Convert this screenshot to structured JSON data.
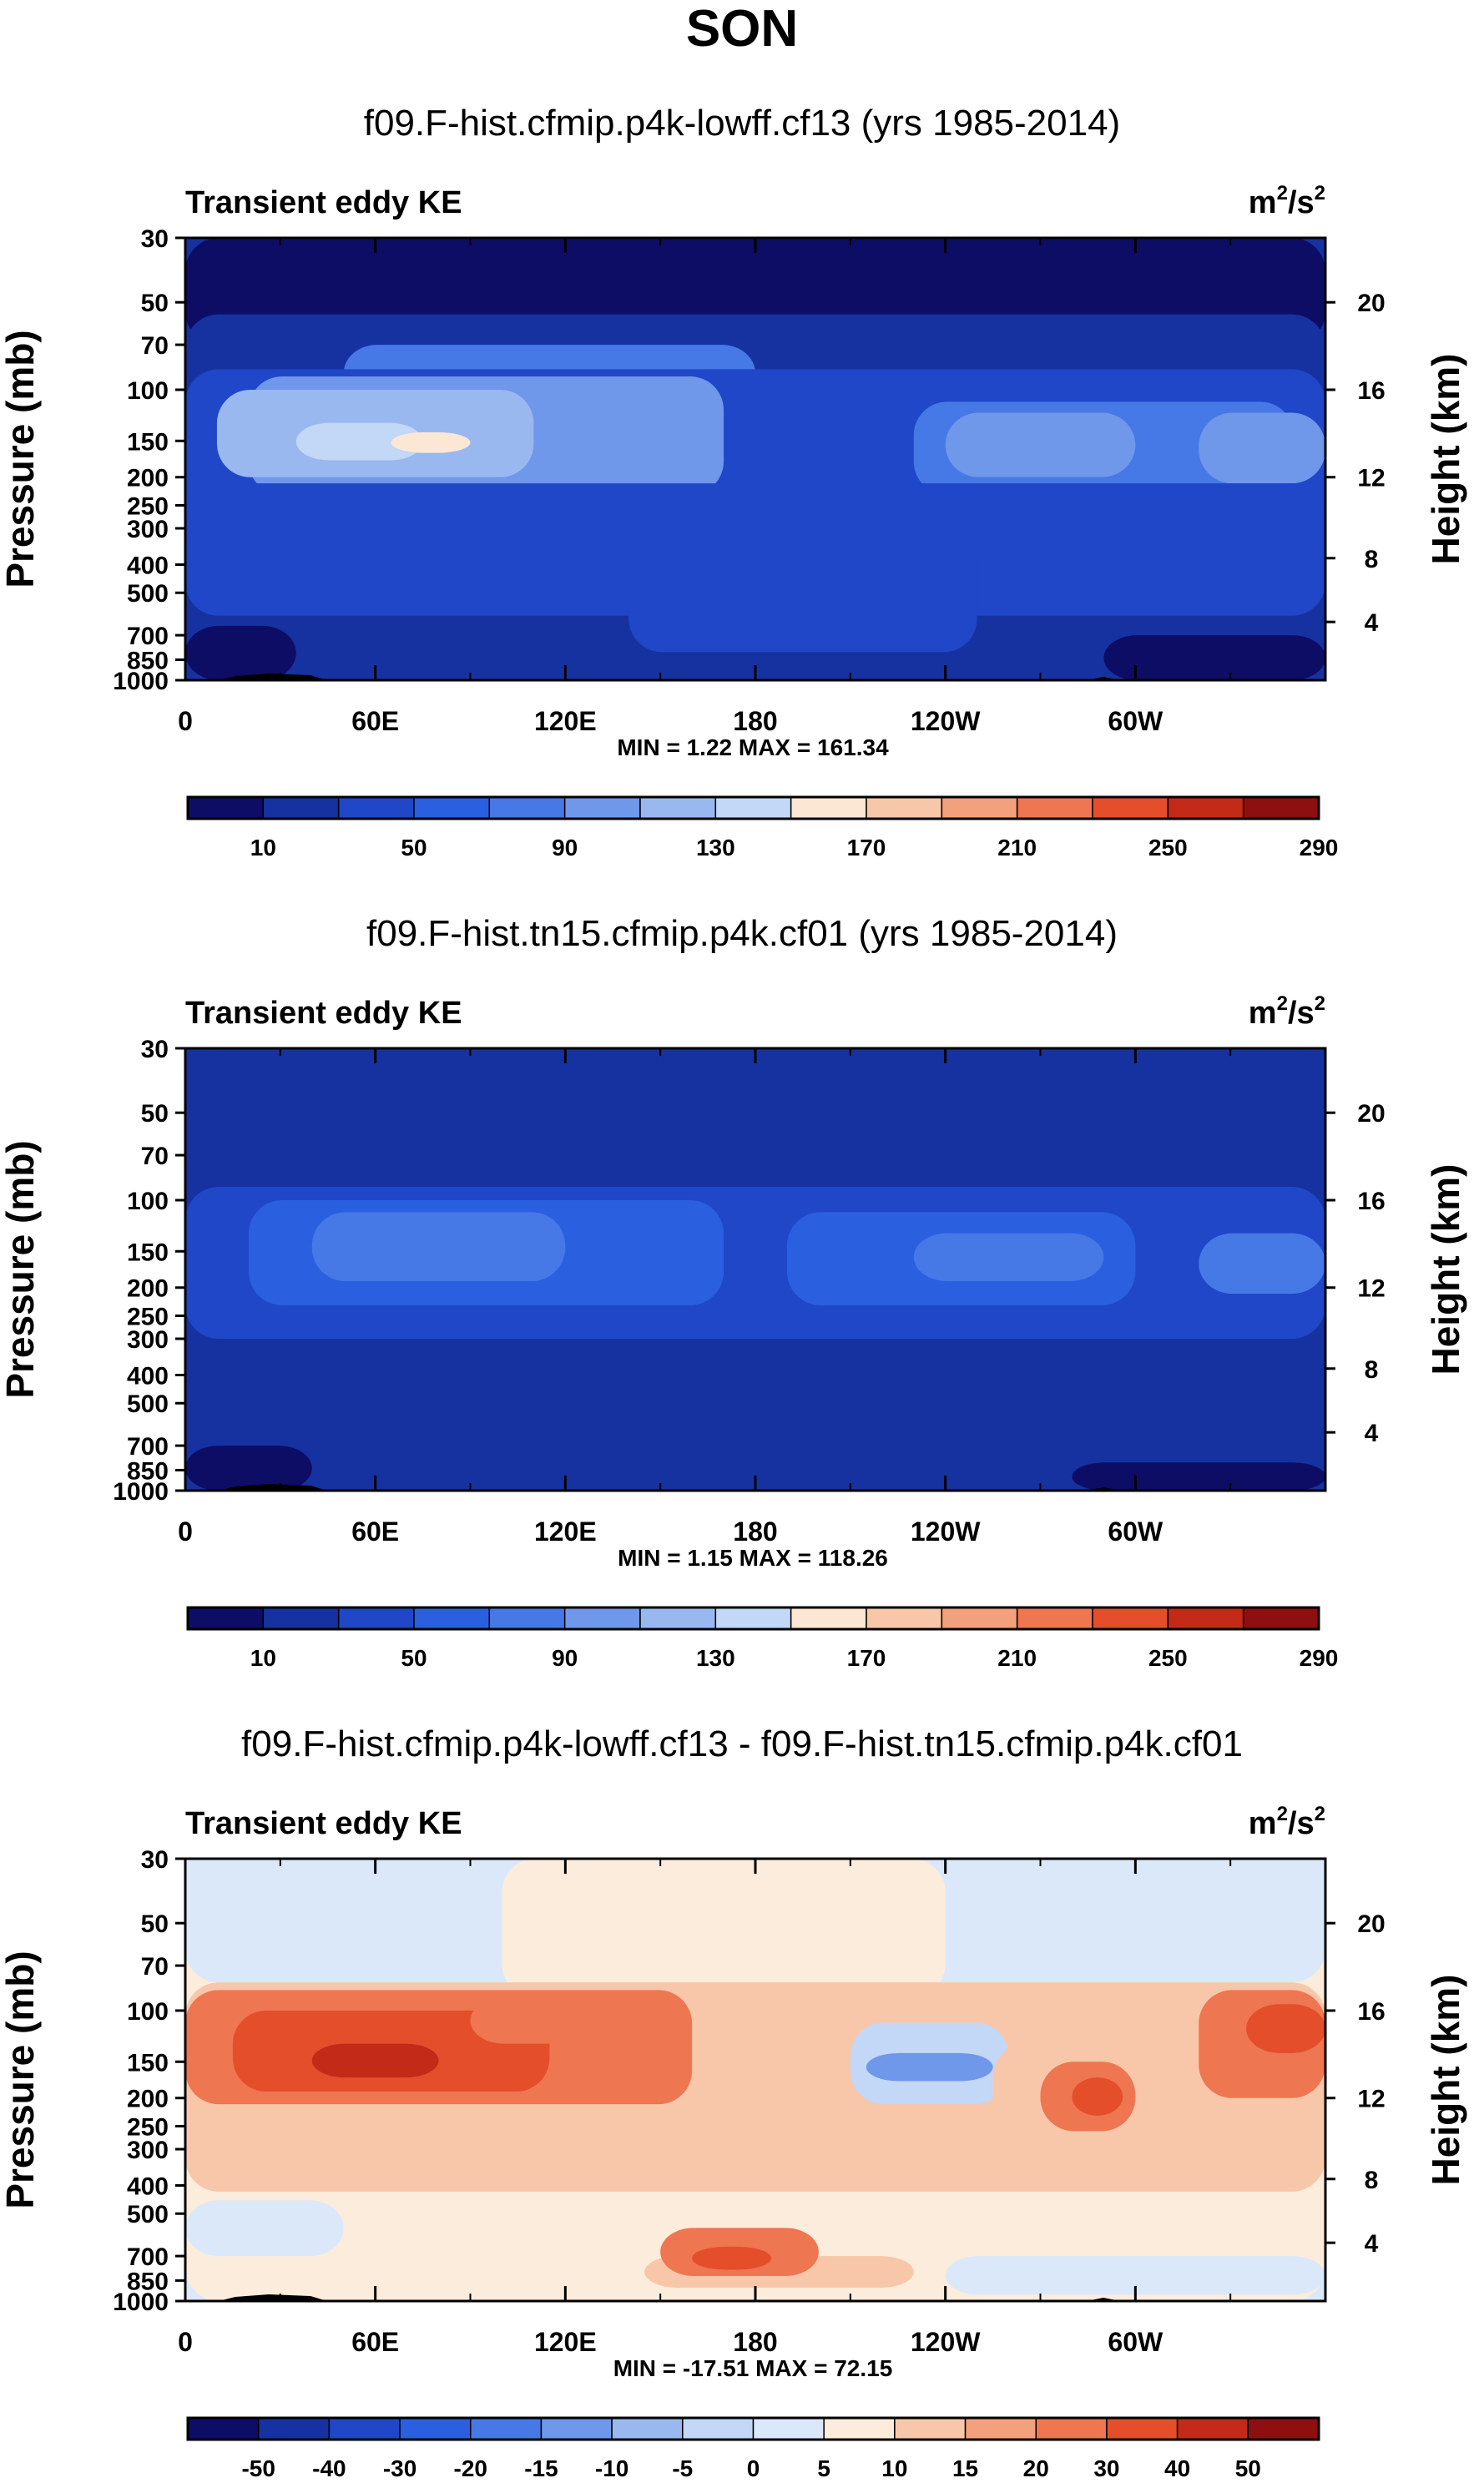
{
  "figure": {
    "season_title": "SON",
    "colors": {
      "abs_scale": [
        "#0d0d66",
        "#1632a0",
        "#1f47c8",
        "#2a5fe0",
        "#4678e6",
        "#6f97ea",
        "#99b8f0",
        "#c3d7f6",
        "#fbe7d4",
        "#f8c7aa",
        "#f3a07c",
        "#ee7650",
        "#e44e2b",
        "#c42a18",
        "#8d0f0f"
      ],
      "diff_scale": [
        "#0d0d66",
        "#1632a0",
        "#1f47c8",
        "#2a5fe0",
        "#4678e6",
        "#6f97ea",
        "#99b8f0",
        "#c3d7f6",
        "#dbe8fa",
        "#fcecdc",
        "#f8c7aa",
        "#f3a07c",
        "#ee7650",
        "#e44e2b",
        "#c42a18",
        "#8d0f0f"
      ]
    }
  },
  "chart_data": [
    {
      "type": "heatmap",
      "title": "f09.F-hist.cfmip.p4k-lowff.cf13 (yrs 1985-2014)",
      "field_label": "Transient eddy KE",
      "units_base": "m",
      "units_exp": "2",
      "units_sep": "/s",
      "units_exp2": "2",
      "ylabel": "Pressure (mb)",
      "y2label": "Height (km)",
      "x_ticks": [
        "0",
        "60E",
        "120E",
        "180",
        "120W",
        "60W"
      ],
      "y_ticks": [
        "30",
        "50",
        "70",
        "100",
        "150",
        "200",
        "250",
        "300",
        "400",
        "500",
        "700",
        "850",
        "1000"
      ],
      "y2_ticks": [
        "20",
        "16",
        "12",
        "8",
        "4"
      ],
      "stats": "MIN =   1.22  MAX = 161.34",
      "min": 1.22,
      "max": 161.34,
      "colorbar_labels": [
        "10",
        "50",
        "90",
        "130",
        "170",
        "210",
        "250",
        "290"
      ]
    },
    {
      "type": "heatmap",
      "title": "f09.F-hist.tn15.cfmip.p4k.cf01 (yrs 1985-2014)",
      "field_label": "Transient eddy KE",
      "units_base": "m",
      "units_exp": "2",
      "units_sep": "/s",
      "units_exp2": "2",
      "ylabel": "Pressure (mb)",
      "y2label": "Height (km)",
      "x_ticks": [
        "0",
        "60E",
        "120E",
        "180",
        "120W",
        "60W"
      ],
      "y_ticks": [
        "30",
        "50",
        "70",
        "100",
        "150",
        "200",
        "250",
        "300",
        "400",
        "500",
        "700",
        "850",
        "1000"
      ],
      "y2_ticks": [
        "20",
        "16",
        "12",
        "8",
        "4"
      ],
      "stats": "MIN =   1.15  MAX = 118.26",
      "min": 1.15,
      "max": 118.26,
      "colorbar_labels": [
        "10",
        "50",
        "90",
        "130",
        "170",
        "210",
        "250",
        "290"
      ]
    },
    {
      "type": "heatmap",
      "title": "f09.F-hist.cfmip.p4k-lowff.cf13 - f09.F-hist.tn15.cfmip.p4k.cf01",
      "field_label": "Transient eddy KE",
      "units_base": "m",
      "units_exp": "2",
      "units_sep": "/s",
      "units_exp2": "2",
      "ylabel": "Pressure (mb)",
      "y2label": "Height (km)",
      "x_ticks": [
        "0",
        "60E",
        "120E",
        "180",
        "120W",
        "60W"
      ],
      "y_ticks": [
        "30",
        "50",
        "70",
        "100",
        "150",
        "200",
        "250",
        "300",
        "400",
        "500",
        "700",
        "850",
        "1000"
      ],
      "y2_ticks": [
        "20",
        "16",
        "12",
        "8",
        "4"
      ],
      "stats": "MIN = -17.51  MAX = 72.15",
      "min": -17.51,
      "max": 72.15,
      "colorbar_labels": [
        "-50",
        "-40",
        "-30",
        "-20",
        "-15",
        "-10",
        "-5",
        "0",
        "5",
        "10",
        "15",
        "20",
        "30",
        "40",
        "50"
      ]
    }
  ]
}
